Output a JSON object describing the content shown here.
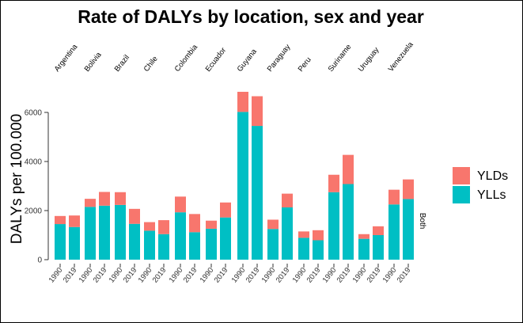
{
  "chart_data": {
    "type": "bar",
    "stacked": true,
    "title": "Rate of DALYs by location, sex and year",
    "ylabel": "DALYs per 100.000",
    "xlabel": "",
    "ylim": [
      0,
      7000
    ],
    "yticks": [
      0,
      2000,
      4000,
      6000
    ],
    "facet_label": "Both",
    "locations": [
      "Argentina",
      "Bolivia",
      "Brazil",
      "Chile",
      "Colombia",
      "Ecuador",
      "Guyana",
      "Paraguay",
      "Peru",
      "Suriname",
      "Uruguay",
      "Venezuela"
    ],
    "years": [
      "1990",
      "2019"
    ],
    "series": [
      {
        "name": "YLLs",
        "color": "#00BFC4",
        "values": [
          [
            1450,
            1330
          ],
          [
            2150,
            2200
          ],
          [
            2230,
            1460
          ],
          [
            1180,
            1040
          ],
          [
            1930,
            1120
          ],
          [
            1260,
            1720
          ],
          [
            6020,
            5450
          ],
          [
            1250,
            2130
          ],
          [
            890,
            790
          ],
          [
            2750,
            3080
          ],
          [
            850,
            1000
          ],
          [
            2250,
            2470
          ]
        ]
      },
      {
        "name": "YLDs",
        "color": "#F8766D",
        "values": [
          [
            330,
            470
          ],
          [
            330,
            560
          ],
          [
            520,
            610
          ],
          [
            350,
            570
          ],
          [
            640,
            740
          ],
          [
            330,
            610
          ],
          [
            820,
            1210
          ],
          [
            380,
            560
          ],
          [
            260,
            410
          ],
          [
            710,
            1190
          ],
          [
            190,
            360
          ],
          [
            600,
            800
          ]
        ]
      }
    ],
    "legend_position": "right",
    "grid": false
  }
}
